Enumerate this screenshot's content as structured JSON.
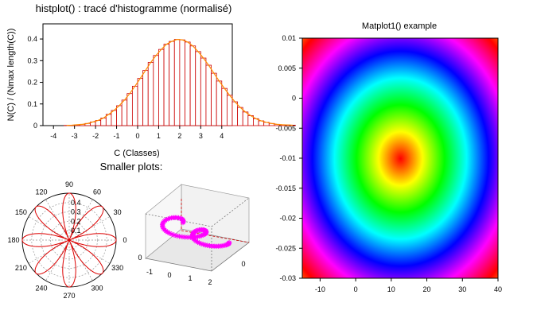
{
  "figure": {
    "histogram_title": "histplot() : tracé d'histogramme (normalisé)",
    "smaller_plots_title": "Smaller plots:",
    "matplot_title": "Matplot1() example"
  },
  "chart_data": [
    {
      "id": "histogram",
      "type": "bar",
      "title": "histplot() : tracé d'histogramme (normalisé)",
      "xlabel": "C (Classes)",
      "ylabel": "N(C) / (Nmax length(C))",
      "xlim": [
        -4.5,
        4.5
      ],
      "ylim": [
        0,
        0.47
      ],
      "xticks": [
        "-4",
        "-3",
        "-2",
        "-1",
        "0",
        "1",
        "2",
        "3",
        "4"
      ],
      "yticks": [
        "0",
        "0.1",
        "0.2",
        "0.3",
        "0.4"
      ],
      "bin_width": 0.25,
      "bin_start": -3.5,
      "values": [
        0.001,
        0.002,
        0.004,
        0.006,
        0.01,
        0.017,
        0.024,
        0.035,
        0.052,
        0.07,
        0.092,
        0.118,
        0.148,
        0.182,
        0.218,
        0.255,
        0.292,
        0.324,
        0.352,
        0.376,
        0.389,
        0.398,
        0.396,
        0.386,
        0.368,
        0.342,
        0.312,
        0.279,
        0.242,
        0.206,
        0.172,
        0.14,
        0.11,
        0.084,
        0.063,
        0.046,
        0.032,
        0.022,
        0.015,
        0.01,
        0.006,
        0.004,
        0.003,
        0.002
      ],
      "bar_color": "#ffffff",
      "edge_color": "#cc0000",
      "curve_color": "#ff8c00"
    },
    {
      "id": "polar",
      "type": "line",
      "subtype": "polar",
      "angle_labels": [
        "0",
        "30",
        "60",
        "90",
        "120",
        "150",
        "180",
        "210",
        "240",
        "270",
        "300",
        "330"
      ],
      "radial_ticks": [
        "0.1",
        "0.2",
        "0.3",
        "0.4"
      ],
      "rmax": 0.5,
      "rose_petals": 8,
      "rose_k": 4,
      "line_color": "#dd0000"
    },
    {
      "id": "param3d",
      "type": "scatter",
      "subtype": "3d",
      "x_ticks": [
        "-1",
        "0",
        "1",
        "2"
      ],
      "y_ticks": [
        "0"
      ],
      "z_ticks": [
        "0"
      ],
      "marker_color": "#ff00ff"
    },
    {
      "id": "matplot",
      "type": "heatmap",
      "title": "Matplot1() example",
      "xlim": [
        -15,
        40
      ],
      "ylim": [
        -0.03,
        0.01
      ],
      "xticks": [
        "-10",
        "0",
        "10",
        "20",
        "30",
        "40"
      ],
      "yticks": [
        "0.01",
        "0.005",
        "0",
        "-0.005",
        "-0.01",
        "-0.015",
        "-0.02",
        "-0.025",
        "-0.03"
      ],
      "center": [
        12.5,
        -0.01
      ],
      "rings": 2.1,
      "colormap": "hsv"
    }
  ]
}
